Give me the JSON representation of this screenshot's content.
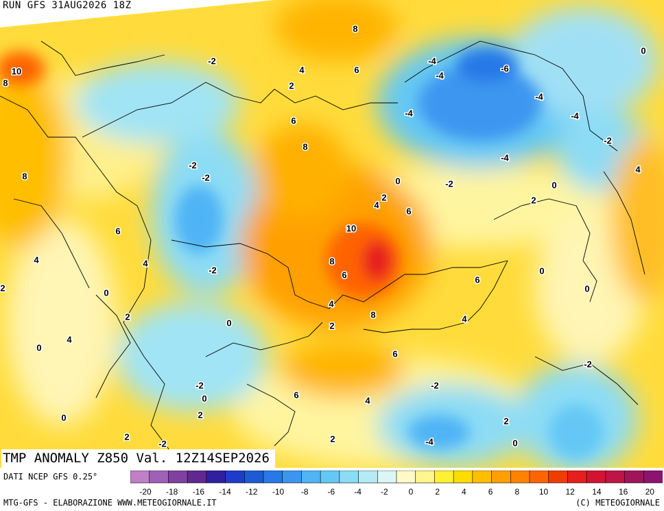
{
  "header": {
    "run_title": "RUN GFS 31AUG2026 18Z",
    "main_title": "TMP ANOMALY Z850 Val. 12Z14SEP2026"
  },
  "legend": {
    "data_source": "DATI NCEP GFS 0.25°",
    "colors": [
      "#c080c8",
      "#a060b8",
      "#8040a0",
      "#602890",
      "#3020a0",
      "#1e3cc8",
      "#1e5ad2",
      "#2878e6",
      "#3c96f0",
      "#50b4f5",
      "#64c8f5",
      "#8cdcf5",
      "#b4ebf5",
      "#dcf5f5",
      "#fffac8",
      "#fff58c",
      "#fff032",
      "#ffdc00",
      "#ffbe00",
      "#ffa000",
      "#ff8200",
      "#ff6400",
      "#f03c00",
      "#e61e1e",
      "#d21432",
      "#be1446",
      "#a0145a",
      "#8c146e"
    ],
    "tick_labels": [
      "-20",
      "-18",
      "-16",
      "-14",
      "-12",
      "-10",
      "-8",
      "-6",
      "-4",
      "-2",
      "0",
      "2",
      "4",
      "6",
      "8",
      "10",
      "12",
      "14",
      "16",
      "20"
    ]
  },
  "footer": {
    "left": "MTG-GFS - ELABORAZIONE WWW.METEOGIORNALE.IT",
    "right": "(C) METEOGIORNALE"
  },
  "map": {
    "contour_labels": [
      {
        "text": "10",
        "value": 10
      },
      {
        "text": "8",
        "value": 8
      },
      {
        "text": "8",
        "value": 8
      },
      {
        "text": "6",
        "value": 6
      },
      {
        "text": "4",
        "value": 4
      },
      {
        "text": "2",
        "value": 2
      },
      {
        "text": "0",
        "value": 0
      },
      {
        "text": "4",
        "value": 4
      },
      {
        "text": "0",
        "value": 0
      },
      {
        "text": "0",
        "value": 0
      },
      {
        "text": "2",
        "value": 2
      },
      {
        "text": "2",
        "value": 2
      },
      {
        "text": "0",
        "value": 0
      },
      {
        "text": "-2",
        "value": -2
      },
      {
        "text": "-2",
        "value": -2
      },
      {
        "text": "4",
        "value": 4
      },
      {
        "text": "-2",
        "value": -2
      },
      {
        "text": "-2",
        "value": -2
      },
      {
        "text": "-2",
        "value": -2
      },
      {
        "text": "0",
        "value": 0
      },
      {
        "text": "2",
        "value": 2
      },
      {
        "text": "6",
        "value": 6
      },
      {
        "text": "8",
        "value": 8
      },
      {
        "text": "4",
        "value": 4
      },
      {
        "text": "2",
        "value": 2
      },
      {
        "text": "6",
        "value": 6
      },
      {
        "text": "8",
        "value": 8
      },
      {
        "text": "10",
        "value": 10
      },
      {
        "text": "8",
        "value": 8
      },
      {
        "text": "6",
        "value": 6
      },
      {
        "text": "4",
        "value": 4
      },
      {
        "text": "2",
        "value": 2
      },
      {
        "text": "6",
        "value": 6
      },
      {
        "text": "4",
        "value": 4
      },
      {
        "text": "2",
        "value": 2
      },
      {
        "text": "0",
        "value": 0
      },
      {
        "text": "4",
        "value": 4
      },
      {
        "text": "8",
        "value": 8
      },
      {
        "text": "6",
        "value": 6
      },
      {
        "text": "4",
        "value": 4
      },
      {
        "text": "6",
        "value": 6
      },
      {
        "text": "6",
        "value": 6
      },
      {
        "text": "-2",
        "value": -2
      },
      {
        "text": "-2",
        "value": -2
      },
      {
        "text": "-4",
        "value": -4
      },
      {
        "text": "-4",
        "value": -4
      },
      {
        "text": "-4",
        "value": -4
      },
      {
        "text": "-6",
        "value": -6
      },
      {
        "text": "-4",
        "value": -4
      },
      {
        "text": "-4",
        "value": -4
      },
      {
        "text": "-4",
        "value": -4
      },
      {
        "text": "-2",
        "value": -2
      },
      {
        "text": "0",
        "value": 0
      },
      {
        "text": "2",
        "value": 2
      },
      {
        "text": "0",
        "value": 0
      },
      {
        "text": "0",
        "value": 0
      },
      {
        "text": "0",
        "value": 0
      },
      {
        "text": "-2",
        "value": -2
      },
      {
        "text": "4",
        "value": 4
      },
      {
        "text": "2",
        "value": 2
      },
      {
        "text": "-2",
        "value": -2
      },
      {
        "text": "2",
        "value": 2
      },
      {
        "text": "0",
        "value": 0
      },
      {
        "text": "-4",
        "value": -4
      }
    ]
  }
}
